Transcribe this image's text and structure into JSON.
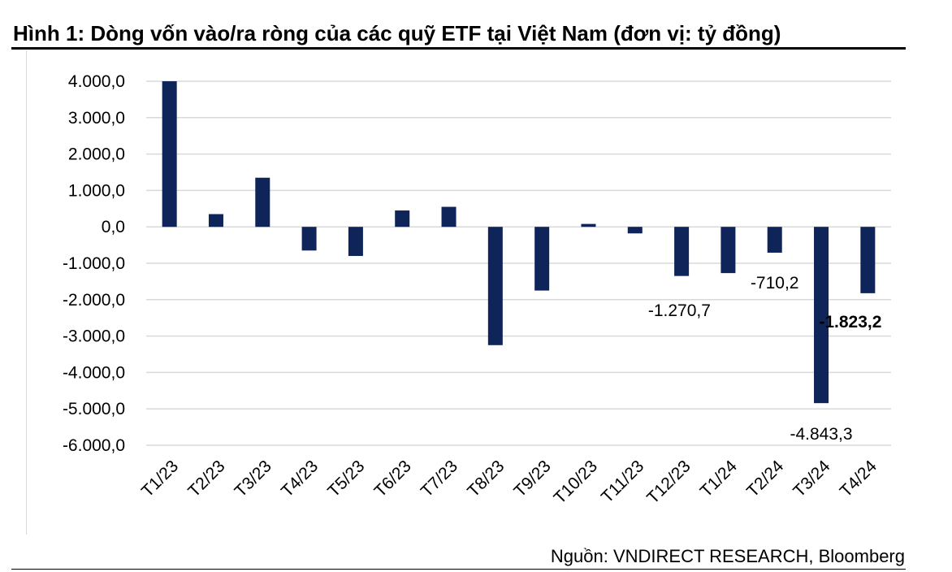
{
  "title": "Hình 1: Dòng vốn vào/ra ròng của các quỹ ETF tại Việt Nam (đơn vị: tỷ đồng)",
  "source": "Nguồn: VNDIRECT RESEARCH, Bloomberg",
  "chart_data": {
    "type": "bar",
    "title": "Hình 1: Dòng vốn vào/ra ròng của các quỹ ETF tại Việt Nam (đơn vị: tỷ đồng)",
    "xlabel": "",
    "ylabel": "",
    "categories": [
      "T1/23",
      "T2/23",
      "T3/23",
      "T4/23",
      "T5/23",
      "T6/23",
      "T7/23",
      "T8/23",
      "T9/23",
      "T10/23",
      "T11/23",
      "T12/23",
      "T1/24",
      "T2/24",
      "T3/24",
      "T4/24"
    ],
    "values": [
      4000,
      350,
      1350,
      -650,
      -800,
      450,
      550,
      -3250,
      -1750,
      80,
      -180,
      -1350,
      -1270.7,
      -710.2,
      -4843.3,
      -1823.2
    ],
    "ylim": [
      -6000,
      4000
    ],
    "yticks": [
      4000,
      3000,
      2000,
      1000,
      0,
      -1000,
      -2000,
      -3000,
      -4000,
      -5000,
      -6000
    ],
    "ytick_labels": [
      "4.000,0",
      "3.000,0",
      "2.000,0",
      "1.000,0",
      "0,0",
      "-1.000,0",
      "-2.000,0",
      "-3.000,0",
      "-4.000,0",
      "-5.000,0",
      "-6.000,0"
    ],
    "data_labels": [
      {
        "index": 12,
        "text": "-1.270,7",
        "bold": false
      },
      {
        "index": 13,
        "text": "-710,2",
        "bold": false
      },
      {
        "index": 14,
        "text": "-4.843,3",
        "bold": false
      },
      {
        "index": 15,
        "text": "-1.823,2",
        "bold": true
      }
    ],
    "grid": true,
    "bar_color": "#0f2458",
    "legend": "none"
  }
}
